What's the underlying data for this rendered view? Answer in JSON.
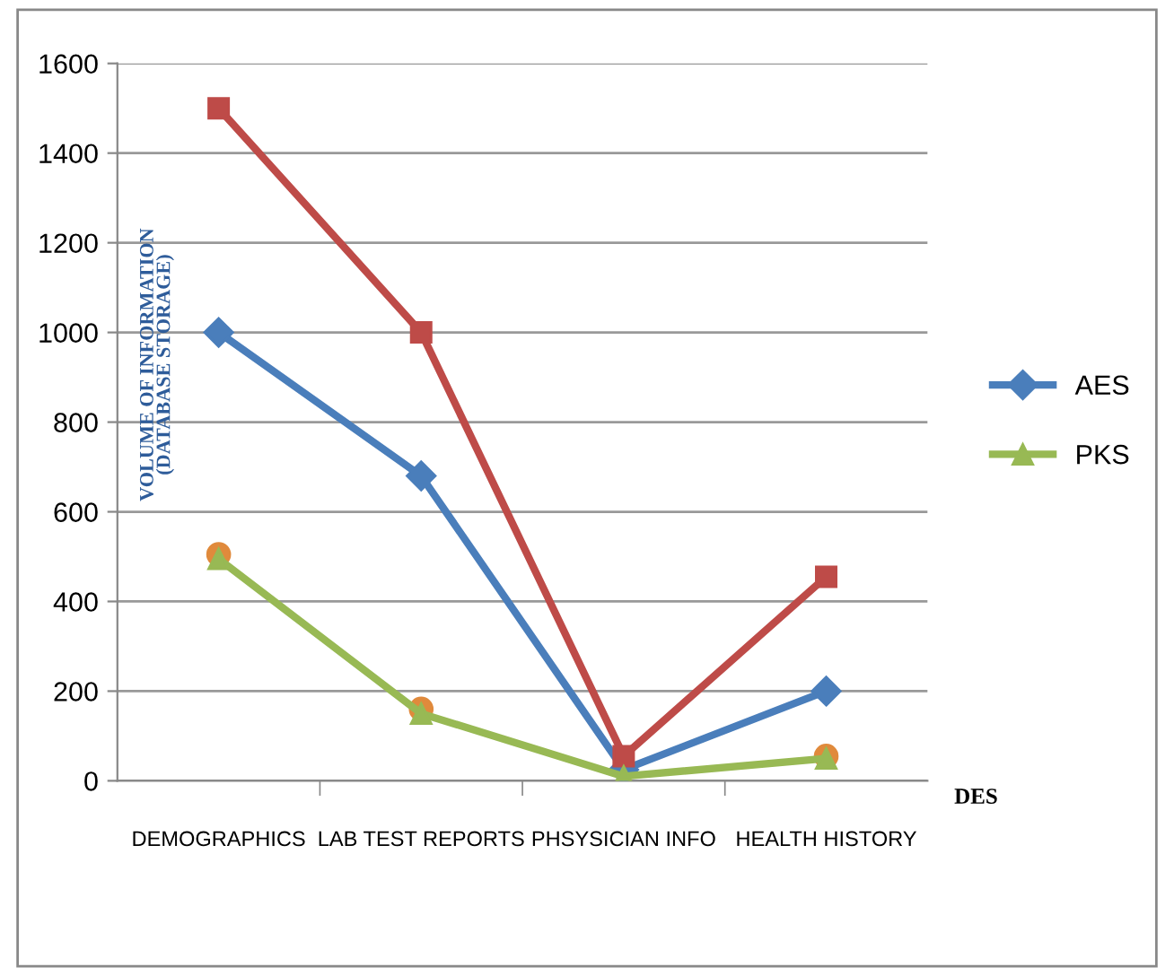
{
  "chart_data": {
    "type": "line",
    "xlabel": "DES",
    "ylabel": "VOLUME OF INFORMATION\n(DATABASE STORAGE)",
    "categories": [
      "DEMOGRAPHICS",
      "LAB TEST REPORTS",
      "PHSYSICIAN INFO",
      "HEALTH HISTORY"
    ],
    "series": [
      {
        "type": "scatter",
        "color": "#e08a3c",
        "marker": "circle",
        "values": [
          505,
          160,
          null,
          55
        ]
      },
      {
        "name": "AES",
        "color": "#4a7ebb",
        "marker": "diamond",
        "values": [
          1000,
          680,
          25,
          200
        ]
      },
      {
        "color": "#be4b48",
        "marker": "square",
        "values": [
          1500,
          1000,
          55,
          455
        ]
      },
      {
        "name": "PKS",
        "color": "#98b954",
        "marker": "triangle",
        "values": [
          495,
          150,
          10,
          50
        ]
      }
    ],
    "ylim": [
      0,
      1600
    ],
    "yticks": [
      0,
      200,
      400,
      600,
      800,
      1000,
      1200,
      1400,
      1600
    ],
    "grid": "y",
    "legend": "right",
    "line_style": "solid"
  }
}
